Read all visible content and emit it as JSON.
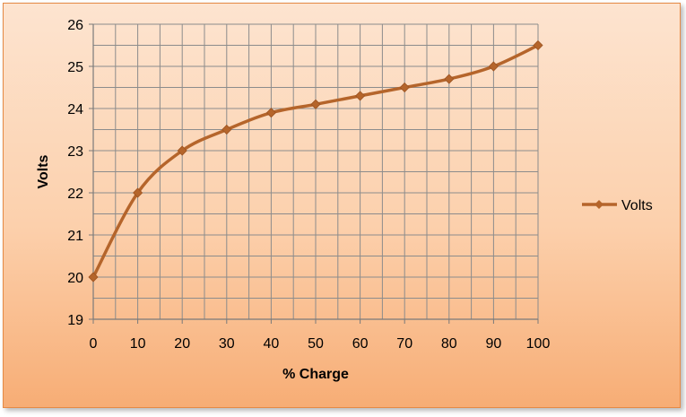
{
  "chart_data": {
    "type": "line",
    "title": "",
    "xlabel": "% Charge",
    "ylabel": "Volts",
    "x": [
      0,
      10,
      20,
      30,
      40,
      50,
      60,
      70,
      80,
      90,
      100
    ],
    "xlim": [
      0,
      100
    ],
    "ylim": [
      19,
      26
    ],
    "x_ticks": [
      "0",
      "10",
      "20",
      "30",
      "40",
      "50",
      "60",
      "70",
      "80",
      "90",
      "100"
    ],
    "y_ticks": [
      "19",
      "20",
      "21",
      "22",
      "23",
      "24",
      "25",
      "26"
    ],
    "grid": true,
    "smooth": true,
    "legend_position": "right",
    "series": [
      {
        "name": "Volts",
        "color": "#b5652b",
        "marker": "diamond",
        "values": [
          20.0,
          22.0,
          23.0,
          23.5,
          23.9,
          24.1,
          24.3,
          24.5,
          24.7,
          25.0,
          25.5
        ]
      }
    ],
    "colors": {
      "background_top": "#fde4d0",
      "background_bottom": "#f7ad75",
      "border": "#e58a45",
      "grid": "#8c8c8c"
    }
  }
}
